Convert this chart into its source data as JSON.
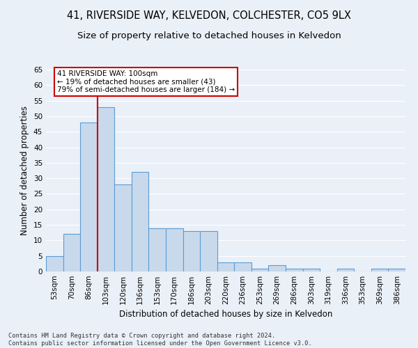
{
  "title1": "41, RIVERSIDE WAY, KELVEDON, COLCHESTER, CO5 9LX",
  "title2": "Size of property relative to detached houses in Kelvedon",
  "xlabel": "Distribution of detached houses by size in Kelvedon",
  "ylabel": "Number of detached properties",
  "footnote": "Contains HM Land Registry data © Crown copyright and database right 2024.\nContains public sector information licensed under the Open Government Licence v3.0.",
  "categories": [
    "53sqm",
    "70sqm",
    "86sqm",
    "103sqm",
    "120sqm",
    "136sqm",
    "153sqm",
    "170sqm",
    "186sqm",
    "203sqm",
    "220sqm",
    "236sqm",
    "253sqm",
    "269sqm",
    "286sqm",
    "303sqm",
    "319sqm",
    "336sqm",
    "353sqm",
    "369sqm",
    "386sqm"
  ],
  "values": [
    5,
    12,
    48,
    53,
    28,
    32,
    14,
    14,
    13,
    13,
    3,
    3,
    1,
    2,
    1,
    1,
    0,
    1,
    0,
    1,
    1
  ],
  "bar_color": "#c9d9ec",
  "bar_edge_color": "#5b9bd5",
  "annotation_text": "41 RIVERSIDE WAY: 100sqm\n← 19% of detached houses are smaller (43)\n79% of semi-detached houses are larger (184) →",
  "annotation_box_color": "#ffffff",
  "annotation_box_edge": "#cc0000",
  "annotation_line_color": "#cc0000",
  "vline_x_index": 2.5,
  "ylim": [
    0,
    65
  ],
  "yticks": [
    0,
    5,
    10,
    15,
    20,
    25,
    30,
    35,
    40,
    45,
    50,
    55,
    60,
    65
  ],
  "bg_color": "#eaf0f8",
  "title1_fontsize": 10.5,
  "title2_fontsize": 9.5,
  "xlabel_fontsize": 8.5,
  "ylabel_fontsize": 8.5,
  "tick_fontsize": 7.5,
  "annotation_fontsize": 7.5
}
